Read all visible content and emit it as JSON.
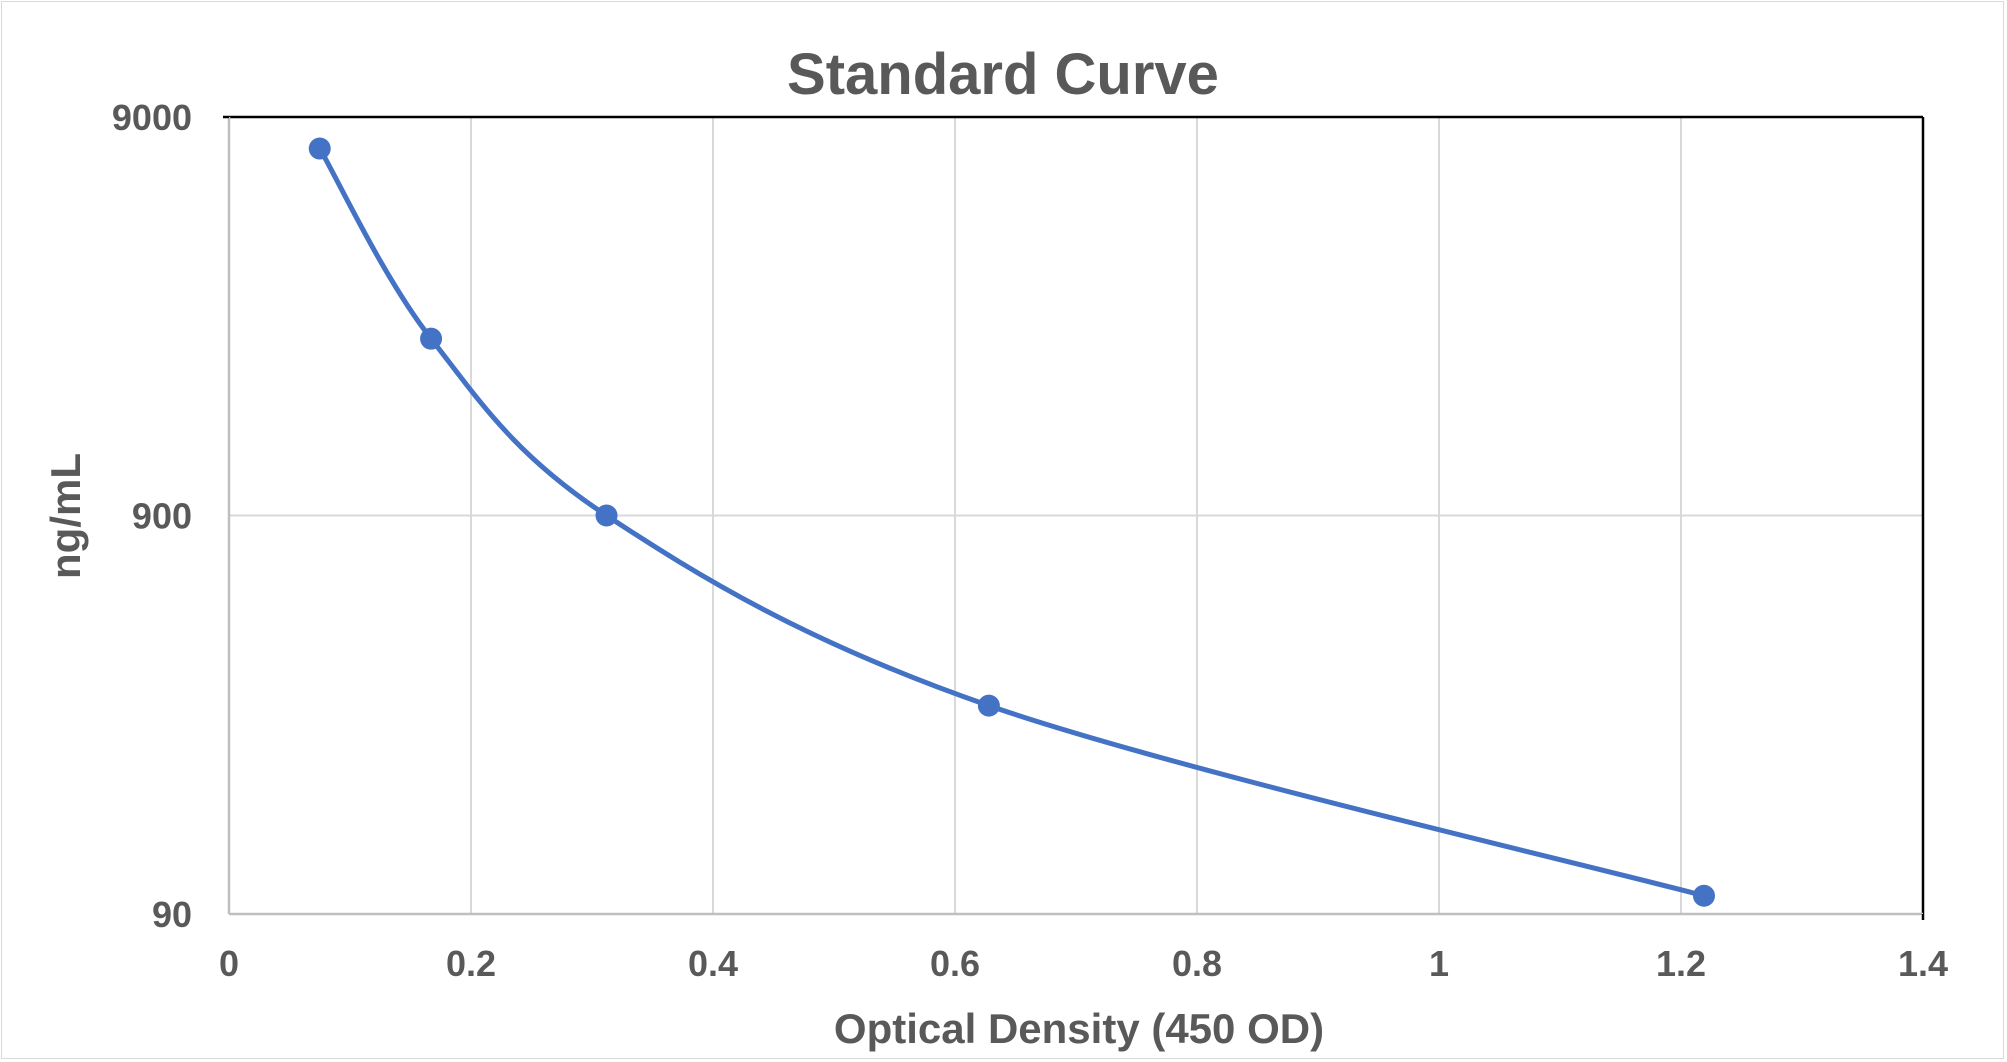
{
  "chart_data": {
    "type": "scatter",
    "title": "Standard Curve",
    "xlabel": "Optical Density (450 OD)",
    "ylabel": "ng/mL",
    "xlim": [
      0,
      1.4
    ],
    "ylim": [
      90,
      9000
    ],
    "y_scale": "log",
    "x_ticks": [
      "0",
      "0.2",
      "0.4",
      "0.6",
      "0.8",
      "1",
      "1.2",
      "1.4"
    ],
    "y_ticks": [
      "90",
      "900",
      "9000"
    ],
    "grid": true,
    "legend": "none",
    "smoothed_line": true,
    "series": [
      {
        "color": "#4472c4",
        "points": [
          {
            "x": 0.075,
            "y": 7500
          },
          {
            "x": 0.167,
            "y": 2500
          },
          {
            "x": 0.312,
            "y": 900
          },
          {
            "x": 0.628,
            "y": 300
          },
          {
            "x": 1.219,
            "y": 100
          }
        ]
      }
    ]
  }
}
